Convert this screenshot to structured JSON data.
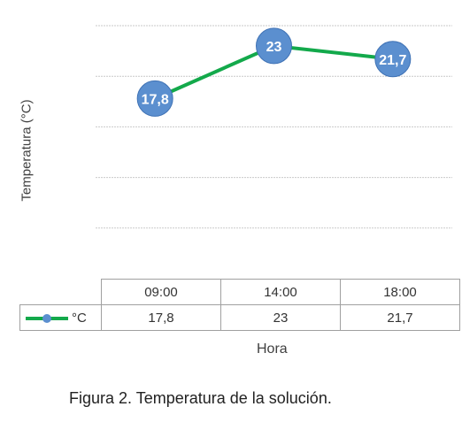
{
  "chart_data": {
    "type": "line",
    "categories": [
      "09:00",
      "14:00",
      "18:00"
    ],
    "series": [
      {
        "name": "°C",
        "values": [
          17.8,
          23,
          21.7
        ],
        "labels": [
          "17,8",
          "23",
          "21,7"
        ],
        "color": "#13a94b",
        "marker_color": "#5b8fcf"
      }
    ],
    "ylabel": "Temperatura (°C)",
    "xlabel": "Hora",
    "ylim": [
      0,
      25
    ],
    "grid": true,
    "data_table": true
  },
  "caption": "Figura 2. Temperatura de la solución."
}
